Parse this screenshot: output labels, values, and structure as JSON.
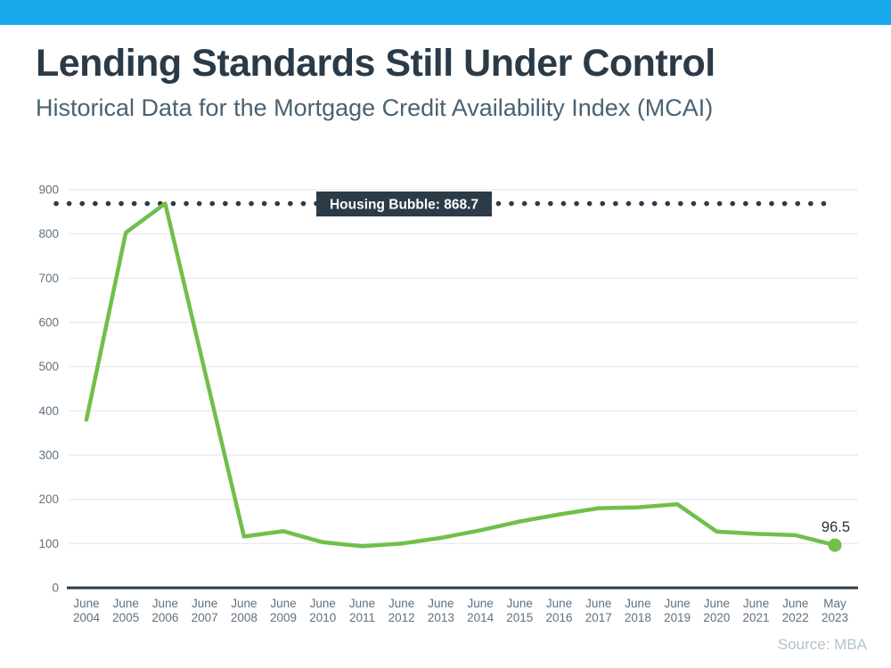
{
  "colors": {
    "accent_bar": "#18A9EC",
    "title_text": "#2B3A47",
    "subtitle_text": "#4A6272",
    "axis_text": "#5E7181",
    "gridline": "#E5E8EA",
    "axis_line": "#2C3B48",
    "annotation_bg": "#2C3B48",
    "annotation_text": "#FFFFFF",
    "line": "#70BF4B",
    "end_label_text": "#22303C",
    "source_text": "#B3C2CB"
  },
  "chart_data": {
    "type": "line",
    "title": "Lending Standards Still Under Control",
    "subtitle": "Historical Data for the Mortgage Credit Availability Index (MCAI)",
    "source": "Source: MBA",
    "categories": [
      "June 2004",
      "June 2005",
      "June 2006",
      "June 2007",
      "June 2008",
      "June 2009",
      "June 2010",
      "June 2011",
      "June 2012",
      "June 2013",
      "June 2014",
      "June 2015",
      "June 2016",
      "June 2017",
      "June 2018",
      "June 2019",
      "June 2020",
      "June 2021",
      "June 2022",
      "May 2023"
    ],
    "values": [
      380,
      803,
      868.7,
      492,
      116,
      128,
      103,
      94,
      100,
      113,
      130,
      150,
      166,
      180,
      182,
      189,
      127,
      122,
      119,
      96.5
    ],
    "series_name": "Mortgage Credit Availability Index",
    "annotation": {
      "label": "Housing Bubble: 868.7",
      "value": 868.7
    },
    "end_point_label": "96.5",
    "xlabel": "",
    "ylabel": "",
    "ylim": [
      0,
      900
    ],
    "ytick_step": 100,
    "grid": true,
    "legend": false
  }
}
